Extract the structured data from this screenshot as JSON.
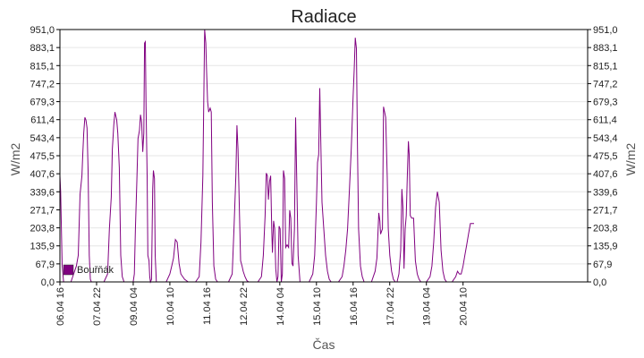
{
  "chart_data": {
    "type": "line",
    "title": "Radiace",
    "xlabel": "Čas",
    "ylabel": "W/m2",
    "ylabel_right": "W/m2",
    "ylim": [
      0,
      951
    ],
    "xlim": [
      0,
      14.4
    ],
    "grid": true,
    "legend_position": "bottom-left",
    "colors": {
      "series": "#800080",
      "axis": "#000000",
      "grid": "#e6e6e6"
    },
    "yticks": [
      "0,0",
      "67,9",
      "135,9",
      "203,8",
      "271,7",
      "339,6",
      "407,6",
      "475,5",
      "543,4",
      "611,4",
      "679,3",
      "747,2",
      "815,1",
      "883,1",
      "951,0"
    ],
    "xticks": [
      {
        "x": 0,
        "label": "06.04 16"
      },
      {
        "x": 1.0,
        "label": "07.04 22"
      },
      {
        "x": 2.0,
        "label": "09.04 04"
      },
      {
        "x": 3.0,
        "label": "10.04 10"
      },
      {
        "x": 4.0,
        "label": "11.04 16"
      },
      {
        "x": 5.0,
        "label": "12.04 22"
      },
      {
        "x": 6.0,
        "label": "14.04 04"
      },
      {
        "x": 7.0,
        "label": "15.04 10"
      },
      {
        "x": 8.0,
        "label": "16.04 16"
      },
      {
        "x": 9.0,
        "label": "17.04 22"
      },
      {
        "x": 10.0,
        "label": "19.04 04"
      },
      {
        "x": 11.0,
        "label": "20.04 10"
      }
    ],
    "series": [
      {
        "name": "Bouřňák",
        "color": "#800080",
        "points": [
          [
            0,
            400
          ],
          [
            0.02,
            340
          ],
          [
            0.06,
            60
          ],
          [
            0.1,
            0
          ],
          [
            0.3,
            0
          ],
          [
            0.35,
            20
          ],
          [
            0.4,
            40
          ],
          [
            0.45,
            60
          ],
          [
            0.5,
            100
          ],
          [
            0.55,
            330
          ],
          [
            0.6,
            400
          ],
          [
            0.62,
            470
          ],
          [
            0.65,
            560
          ],
          [
            0.68,
            620
          ],
          [
            0.71,
            610
          ],
          [
            0.74,
            580
          ],
          [
            0.77,
            420
          ],
          [
            0.8,
            100
          ],
          [
            0.83,
            10
          ],
          [
            0.86,
            0
          ],
          [
            1.2,
            0
          ],
          [
            1.3,
            30
          ],
          [
            1.35,
            200
          ],
          [
            1.4,
            320
          ],
          [
            1.43,
            500
          ],
          [
            1.47,
            590
          ],
          [
            1.5,
            640
          ],
          [
            1.55,
            610
          ],
          [
            1.58,
            560
          ],
          [
            1.62,
            430
          ],
          [
            1.66,
            100
          ],
          [
            1.7,
            20
          ],
          [
            1.75,
            0
          ],
          [
            2.0,
            0
          ],
          [
            2.03,
            30
          ],
          [
            2.06,
            200
          ],
          [
            2.1,
            380
          ],
          [
            2.13,
            540
          ],
          [
            2.17,
            570
          ],
          [
            2.2,
            630
          ],
          [
            2.23,
            600
          ],
          [
            2.26,
            490
          ],
          [
            2.29,
            560
          ],
          [
            2.31,
            900
          ],
          [
            2.33,
            905
          ],
          [
            2.35,
            660
          ],
          [
            2.38,
            400
          ],
          [
            2.4,
            100
          ],
          [
            2.43,
            80
          ],
          [
            2.45,
            20
          ],
          [
            2.47,
            0
          ],
          [
            2.5,
            10
          ],
          [
            2.53,
            350
          ],
          [
            2.55,
            420
          ],
          [
            2.58,
            390
          ],
          [
            2.6,
            100
          ],
          [
            2.63,
            0
          ],
          [
            2.9,
            0
          ],
          [
            3.0,
            30
          ],
          [
            3.05,
            60
          ],
          [
            3.1,
            90
          ],
          [
            3.15,
            160
          ],
          [
            3.2,
            150
          ],
          [
            3.25,
            70
          ],
          [
            3.3,
            30
          ],
          [
            3.4,
            10
          ],
          [
            3.5,
            0
          ],
          [
            3.7,
            0
          ],
          [
            3.8,
            20
          ],
          [
            3.85,
            150
          ],
          [
            3.9,
            400
          ],
          [
            3.95,
            951
          ],
          [
            3.98,
            900
          ],
          [
            4.0,
            800
          ],
          [
            4.03,
            680
          ],
          [
            4.06,
            640
          ],
          [
            4.1,
            655
          ],
          [
            4.13,
            640
          ],
          [
            4.16,
            300
          ],
          [
            4.2,
            60
          ],
          [
            4.25,
            10
          ],
          [
            4.3,
            0
          ],
          [
            4.6,
            0
          ],
          [
            4.7,
            30
          ],
          [
            4.75,
            200
          ],
          [
            4.8,
            400
          ],
          [
            4.83,
            590
          ],
          [
            4.86,
            500
          ],
          [
            4.9,
            250
          ],
          [
            4.93,
            80
          ],
          [
            4.97,
            60
          ],
          [
            5.0,
            40
          ],
          [
            5.05,
            20
          ],
          [
            5.1,
            5
          ],
          [
            5.15,
            0
          ],
          [
            5.4,
            0
          ],
          [
            5.5,
            20
          ],
          [
            5.55,
            100
          ],
          [
            5.6,
            250
          ],
          [
            5.63,
            410
          ],
          [
            5.66,
            400
          ],
          [
            5.69,
            310
          ],
          [
            5.72,
            380
          ],
          [
            5.75,
            400
          ],
          [
            5.78,
            200
          ],
          [
            5.8,
            110
          ],
          [
            5.83,
            230
          ],
          [
            5.86,
            200
          ],
          [
            5.89,
            50
          ],
          [
            5.92,
            0
          ],
          [
            5.95,
            20
          ],
          [
            5.98,
            210
          ],
          [
            6.01,
            200
          ],
          [
            6.04,
            0
          ],
          [
            6.07,
            30
          ],
          [
            6.1,
            420
          ],
          [
            6.13,
            390
          ],
          [
            6.16,
            130
          ],
          [
            6.2,
            140
          ],
          [
            6.24,
            130
          ],
          [
            6.27,
            270
          ],
          [
            6.3,
            240
          ],
          [
            6.33,
            70
          ],
          [
            6.36,
            60
          ],
          [
            6.4,
            200
          ],
          [
            6.43,
            620
          ],
          [
            6.46,
            400
          ],
          [
            6.5,
            100
          ],
          [
            6.55,
            0
          ],
          [
            6.8,
            0
          ],
          [
            6.9,
            30
          ],
          [
            6.95,
            100
          ],
          [
            7.0,
            300
          ],
          [
            7.03,
            450
          ],
          [
            7.06,
            480
          ],
          [
            7.09,
            730
          ],
          [
            7.12,
            520
          ],
          [
            7.15,
            300
          ],
          [
            7.2,
            200
          ],
          [
            7.25,
            100
          ],
          [
            7.3,
            40
          ],
          [
            7.35,
            10
          ],
          [
            7.4,
            0
          ],
          [
            7.6,
            0
          ],
          [
            7.7,
            20
          ],
          [
            7.75,
            60
          ],
          [
            7.8,
            120
          ],
          [
            7.85,
            200
          ],
          [
            7.9,
            350
          ],
          [
            7.95,
            500
          ],
          [
            8.0,
            700
          ],
          [
            8.03,
            800
          ],
          [
            8.06,
            920
          ],
          [
            8.09,
            880
          ],
          [
            8.12,
            500
          ],
          [
            8.15,
            200
          ],
          [
            8.2,
            60
          ],
          [
            8.25,
            20
          ],
          [
            8.3,
            0
          ],
          [
            8.5,
            0
          ],
          [
            8.6,
            40
          ],
          [
            8.65,
            90
          ],
          [
            8.7,
            260
          ],
          [
            8.73,
            230
          ],
          [
            8.75,
            180
          ],
          [
            8.8,
            200
          ],
          [
            8.83,
            660
          ],
          [
            8.86,
            640
          ],
          [
            8.89,
            620
          ],
          [
            8.93,
            400
          ],
          [
            8.96,
            200
          ],
          [
            9.0,
            100
          ],
          [
            9.05,
            40
          ],
          [
            9.1,
            10
          ],
          [
            9.15,
            0
          ],
          [
            9.2,
            0
          ],
          [
            9.25,
            30
          ],
          [
            9.3,
            120
          ],
          [
            9.33,
            350
          ],
          [
            9.36,
            280
          ],
          [
            9.39,
            50
          ],
          [
            9.42,
            200
          ],
          [
            9.45,
            250
          ],
          [
            9.48,
            400
          ],
          [
            9.51,
            530
          ],
          [
            9.53,
            480
          ],
          [
            9.56,
            250
          ],
          [
            9.6,
            240
          ],
          [
            9.65,
            240
          ],
          [
            9.7,
            80
          ],
          [
            9.75,
            30
          ],
          [
            9.8,
            10
          ],
          [
            9.85,
            0
          ],
          [
            10.0,
            0
          ],
          [
            10.1,
            20
          ],
          [
            10.15,
            60
          ],
          [
            10.2,
            150
          ],
          [
            10.25,
            280
          ],
          [
            10.3,
            340
          ],
          [
            10.35,
            300
          ],
          [
            10.4,
            120
          ],
          [
            10.45,
            40
          ],
          [
            10.5,
            10
          ],
          [
            10.55,
            0
          ],
          [
            10.7,
            0
          ],
          [
            10.8,
            20
          ],
          [
            10.85,
            40
          ],
          [
            10.9,
            30
          ],
          [
            10.95,
            30
          ],
          [
            11.0,
            60
          ],
          [
            11.05,
            100
          ],
          [
            11.1,
            140
          ],
          [
            11.15,
            180
          ],
          [
            11.2,
            220
          ],
          [
            11.3,
            220
          ]
        ]
      }
    ]
  }
}
